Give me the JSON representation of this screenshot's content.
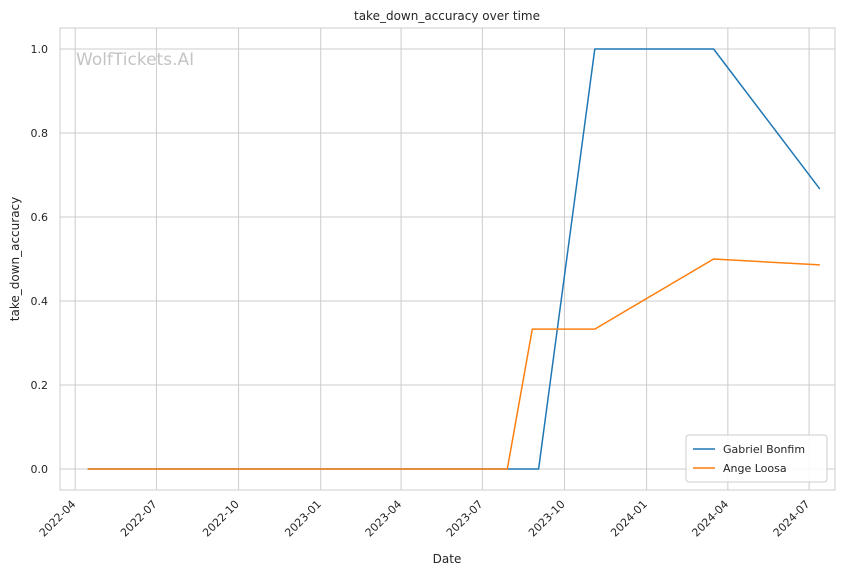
{
  "chart_data": {
    "type": "line",
    "title": "take_down_accuracy over time",
    "xlabel": "Date",
    "ylabel": "take_down_accuracy",
    "watermark": "WolfTickets.AI",
    "x_ticks": [
      "2022-04",
      "2022-07",
      "2022-10",
      "2023-01",
      "2023-04",
      "2023-07",
      "2023-10",
      "2024-01",
      "2024-04",
      "2024-07"
    ],
    "y_ticks": [
      "0.0",
      "0.2",
      "0.4",
      "0.6",
      "0.8",
      "1.0"
    ],
    "xlim": [
      "2022-03-15",
      "2024-07-30"
    ],
    "ylim": [
      -0.05,
      1.05
    ],
    "grid": true,
    "legend_position": "bottom-right",
    "series": [
      {
        "name": "Gabriel Bonfim",
        "color": "#1f77b4",
        "points": [
          {
            "x": "2022-04-15",
            "y": 0.0
          },
          {
            "x": "2023-07-29",
            "y": 0.0
          },
          {
            "x": "2023-09-02",
            "y": 0.0
          },
          {
            "x": "2023-11-04",
            "y": 1.0
          },
          {
            "x": "2024-03-16",
            "y": 1.0
          },
          {
            "x": "2024-07-13",
            "y": 0.667
          }
        ]
      },
      {
        "name": "Ange Loosa",
        "color": "#ff7f0e",
        "points": [
          {
            "x": "2022-04-15",
            "y": 0.0
          },
          {
            "x": "2023-07-29",
            "y": 0.0
          },
          {
            "x": "2023-08-26",
            "y": 0.333
          },
          {
            "x": "2023-11-04",
            "y": 0.333
          },
          {
            "x": "2024-03-16",
            "y": 0.5
          },
          {
            "x": "2024-07-13",
            "y": 0.486
          }
        ]
      }
    ]
  }
}
